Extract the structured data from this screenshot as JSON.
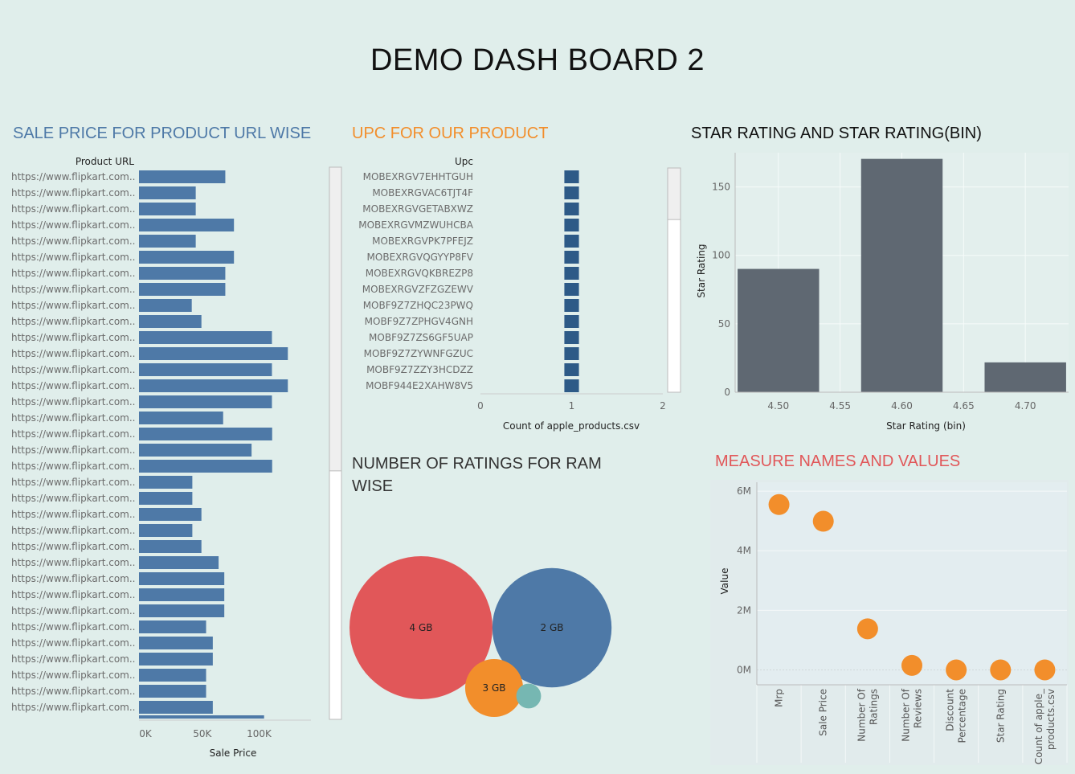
{
  "dashboard": {
    "title": "DEMO DASH BOARD 2"
  },
  "colors": {
    "bg": "#e0eeeb",
    "blue": "#4e79a7",
    "navy": "#2d5a87",
    "orange": "#f28e2b",
    "red": "#e15759",
    "teal": "#76b7b2",
    "gray": "#5f6872"
  },
  "chart_data": [
    {
      "type": "bar",
      "orientation": "horizontal",
      "title": "SALE PRICE FOR PRODUCT URL WISE",
      "title_color": "#4e79a7",
      "row_header": "Product URL",
      "xlabel": "Sale Price",
      "x_ticks": [
        "0K",
        "50K",
        "100K"
      ],
      "xlim": [
        0,
        130000
      ],
      "categories": [
        "https://www.flipkart.com..",
        "https://www.flipkart.com..",
        "https://www.flipkart.com..",
        "https://www.flipkart.com..",
        "https://www.flipkart.com..",
        "https://www.flipkart.com..",
        "https://www.flipkart.com..",
        "https://www.flipkart.com..",
        "https://www.flipkart.com..",
        "https://www.flipkart.com..",
        "https://www.flipkart.com..",
        "https://www.flipkart.com..",
        "https://www.flipkart.com..",
        "https://www.flipkart.com..",
        "https://www.flipkart.com..",
        "https://www.flipkart.com..",
        "https://www.flipkart.com..",
        "https://www.flipkart.com..",
        "https://www.flipkart.com..",
        "https://www.flipkart.com..",
        "https://www.flipkart.com..",
        "https://www.flipkart.com..",
        "https://www.flipkart.com..",
        "https://www.flipkart.com..",
        "https://www.flipkart.com..",
        "https://www.flipkart.com..",
        "https://www.flipkart.com..",
        "https://www.flipkart.com..",
        "https://www.flipkart.com..",
        "https://www.flipkart.com..",
        "https://www.flipkart.com..",
        "https://www.flipkart.com..",
        "https://www.flipkart.com..",
        "https://www.flipkart.com.."
      ],
      "values": [
        75900,
        49900,
        49900,
        83500,
        49900,
        83500,
        75900,
        75900,
        46400,
        54900,
        116900,
        130900,
        116900,
        130900,
        116900,
        74000,
        117100,
        99000,
        117100,
        46900,
        46900,
        54900,
        46900,
        54900,
        70000,
        75000,
        75000,
        75000,
        59000,
        64900,
        64900,
        59000,
        59000,
        64900
      ],
      "partial_last_value": 110000,
      "scrollbar": {
        "thumb_start": 0,
        "thumb_end": 0.55
      }
    },
    {
      "type": "bar",
      "orientation": "horizontal",
      "title": "UPC FOR OUR PRODUCT",
      "title_color": "#f28e2b",
      "row_header": "Upc",
      "xlabel": "Count of apple_products.csv",
      "x_ticks": [
        "0",
        "1",
        "2"
      ],
      "xlim": [
        0,
        2
      ],
      "categories": [
        "MOBEXRGV7EHHTGUH",
        "MOBEXRGVAC6TJT4F",
        "MOBEXRGVGETABXWZ",
        "MOBEXRGVMZWUHCBA",
        "MOBEXRGVPK7PFEJZ",
        "MOBEXRGVQGYYP8FV",
        "MOBEXRGVQKBREZP8",
        "MOBEXRGVZFZGZEWV",
        "MOBF9Z7ZHQC23PWQ",
        "MOBF9Z7ZPHGV4GNH",
        "MOBF9Z7ZS6GF5UAP",
        "MOBF9Z7ZYWNFGZUC",
        "MOBF9Z7ZZY3HCDZZ",
        "MOBF944E2XAHW8V5"
      ],
      "values": [
        1,
        1,
        1,
        1,
        1,
        1,
        1,
        1,
        1,
        1,
        1,
        1,
        1,
        1
      ],
      "bar_halfwidth": 0.08,
      "scrollbar": {
        "thumb_start": 0,
        "thumb_end": 0.23
      }
    },
    {
      "type": "bar",
      "title": "STAR RATING AND STAR RATING(BIN)",
      "title_color": "#111111",
      "xlabel": "Star Rating (bin)",
      "ylabel": "Star Rating",
      "x": [
        4.5,
        4.6,
        4.7
      ],
      "values": [
        90.1,
        170.5,
        21.8
      ],
      "bin_width": 0.05,
      "x_ticks": [
        "4.50",
        "4.55",
        "4.60",
        "4.65",
        "4.70"
      ],
      "xlim": [
        4.465,
        4.735
      ],
      "y_ticks": [
        "0",
        "50",
        "100",
        "150"
      ],
      "ylim": [
        0,
        175
      ],
      "grid": true
    },
    {
      "type": "bubble",
      "title": "NUMBER OF RATINGS FOR RAM WISE",
      "title_lines": [
        "NUMBER OF RATINGS FOR RAM",
        "WISE"
      ],
      "title_color": "#333333",
      "bubbles": [
        {
          "label": "4 GB",
          "value": 1000,
          "color": "#e15759"
        },
        {
          "label": "2 GB",
          "value": 695,
          "color": "#4e79a7"
        },
        {
          "label": "3 GB",
          "value": 164,
          "color": "#f28e2b"
        },
        {
          "label": "",
          "value": 30,
          "color": "#76b7b2"
        }
      ]
    },
    {
      "type": "scatter",
      "title": "MEASURE NAMES AND VALUES",
      "title_color": "#e15759",
      "ylabel": "Value",
      "categories": [
        "Mrp",
        "Sale Price",
        "Number Of Ratings",
        "Number Of Reviews",
        "Discount Percentage",
        "Star Rating",
        "Count of apple_ products.csv"
      ],
      "category_lines": [
        [
          "Mrp"
        ],
        [
          "Sale Price"
        ],
        [
          "Number Of",
          "Ratings"
        ],
        [
          "Number Of",
          "Reviews"
        ],
        [
          "Discount",
          "Percentage"
        ],
        [
          "Star Rating"
        ],
        [
          "Count of apple_",
          "products.csv"
        ]
      ],
      "values": [
        5550000,
        4990000,
        1380000,
        150000,
        0,
        0,
        0
      ],
      "y_ticks": [
        "0M",
        "2M",
        "4M",
        "6M"
      ],
      "ylim": [
        -500000,
        6300000
      ],
      "grid": true
    }
  ]
}
